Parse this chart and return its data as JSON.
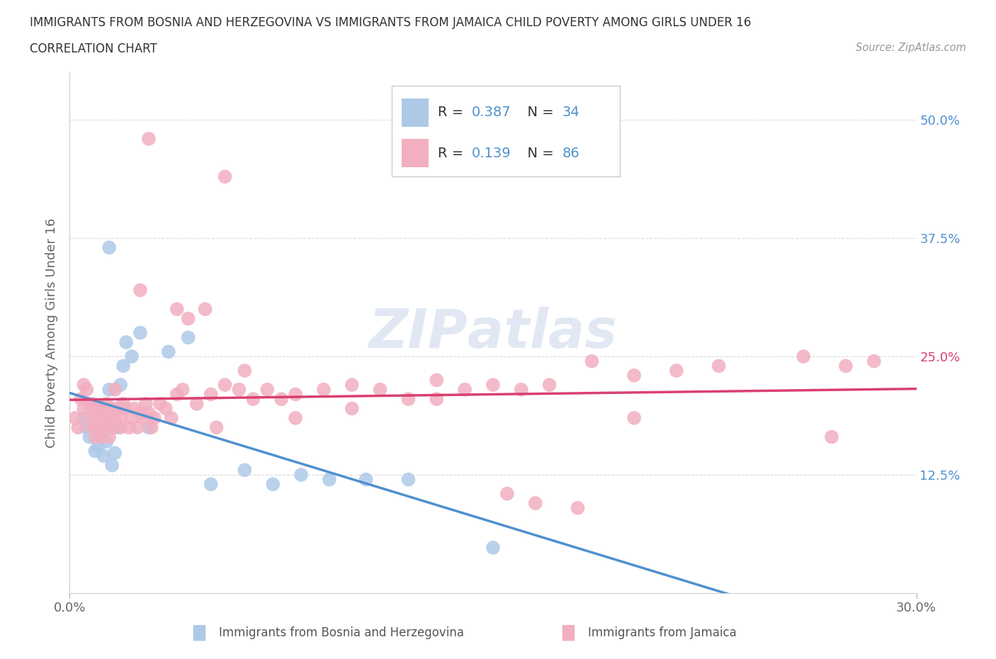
{
  "title_line1": "IMMIGRANTS FROM BOSNIA AND HERZEGOVINA VS IMMIGRANTS FROM JAMAICA CHILD POVERTY AMONG GIRLS UNDER 16",
  "title_line2": "CORRELATION CHART",
  "source_text": "Source: ZipAtlas.com",
  "ylabel": "Child Poverty Among Girls Under 16",
  "r_bosnia": 0.387,
  "n_bosnia": 34,
  "r_jamaica": 0.139,
  "n_jamaica": 86,
  "color_bosnia": "#adc9e8",
  "color_jamaica": "#f2afc0",
  "trend_color_bosnia": "#5090d0",
  "trend_color_jamaica": "#d94070",
  "xlim_min": 0.0,
  "xlim_max": 0.3,
  "ylim_min": 0.0,
  "ylim_max": 0.55,
  "background_color": "#ffffff",
  "grid_color": "#cccccc",
  "watermark_color": "#cddaec",
  "bosnia_x": [
    0.005,
    0.006,
    0.007,
    0.008,
    0.009,
    0.01,
    0.01,
    0.011,
    0.012,
    0.013,
    0.013,
    0.014,
    0.014,
    0.015,
    0.016,
    0.017,
    0.018,
    0.018,
    0.019,
    0.02,
    0.022,
    0.025,
    0.028,
    0.035,
    0.042,
    0.05,
    0.062,
    0.072,
    0.082,
    0.092,
    0.105,
    0.12,
    0.15,
    0.014
  ],
  "bosnia_y": [
    0.185,
    0.175,
    0.165,
    0.2,
    0.15,
    0.17,
    0.155,
    0.195,
    0.145,
    0.16,
    0.178,
    0.215,
    0.185,
    0.135,
    0.148,
    0.175,
    0.195,
    0.22,
    0.24,
    0.265,
    0.25,
    0.275,
    0.175,
    0.255,
    0.27,
    0.115,
    0.13,
    0.115,
    0.125,
    0.12,
    0.12,
    0.12,
    0.048,
    0.365
  ],
  "jamaica_x": [
    0.002,
    0.003,
    0.004,
    0.005,
    0.005,
    0.006,
    0.007,
    0.007,
    0.008,
    0.008,
    0.009,
    0.009,
    0.01,
    0.01,
    0.011,
    0.011,
    0.012,
    0.012,
    0.013,
    0.013,
    0.014,
    0.014,
    0.015,
    0.015,
    0.016,
    0.016,
    0.017,
    0.018,
    0.018,
    0.019,
    0.02,
    0.021,
    0.022,
    0.023,
    0.024,
    0.025,
    0.026,
    0.027,
    0.028,
    0.029,
    0.03,
    0.032,
    0.034,
    0.036,
    0.038,
    0.04,
    0.045,
    0.05,
    0.055,
    0.06,
    0.065,
    0.07,
    0.075,
    0.08,
    0.09,
    0.1,
    0.11,
    0.12,
    0.13,
    0.14,
    0.15,
    0.16,
    0.17,
    0.185,
    0.2,
    0.215,
    0.23,
    0.26,
    0.275,
    0.285,
    0.028,
    0.055,
    0.155,
    0.165,
    0.038,
    0.18,
    0.062,
    0.08,
    0.042,
    0.048,
    0.052,
    0.1,
    0.2,
    0.27,
    0.13,
    0.025
  ],
  "jamaica_y": [
    0.185,
    0.175,
    0.205,
    0.195,
    0.22,
    0.215,
    0.185,
    0.2,
    0.175,
    0.195,
    0.165,
    0.185,
    0.175,
    0.195,
    0.165,
    0.18,
    0.175,
    0.195,
    0.185,
    0.2,
    0.165,
    0.185,
    0.175,
    0.195,
    0.185,
    0.215,
    0.195,
    0.185,
    0.175,
    0.2,
    0.195,
    0.175,
    0.185,
    0.195,
    0.175,
    0.19,
    0.185,
    0.2,
    0.19,
    0.175,
    0.185,
    0.2,
    0.195,
    0.185,
    0.21,
    0.215,
    0.2,
    0.21,
    0.22,
    0.215,
    0.205,
    0.215,
    0.205,
    0.21,
    0.215,
    0.22,
    0.215,
    0.205,
    0.225,
    0.215,
    0.22,
    0.215,
    0.22,
    0.245,
    0.23,
    0.235,
    0.24,
    0.25,
    0.24,
    0.245,
    0.48,
    0.44,
    0.105,
    0.095,
    0.3,
    0.09,
    0.235,
    0.185,
    0.29,
    0.3,
    0.175,
    0.195,
    0.185,
    0.165,
    0.205,
    0.32
  ]
}
